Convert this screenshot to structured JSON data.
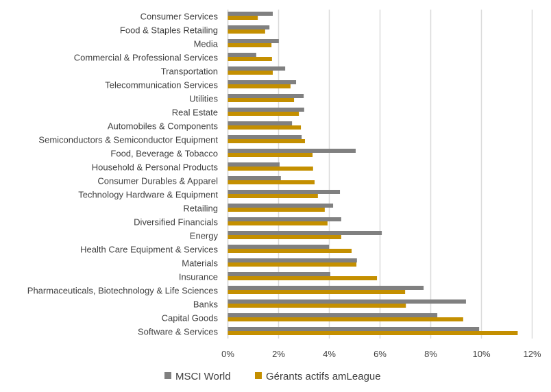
{
  "chart_data": {
    "type": "bar",
    "orientation": "horizontal",
    "title": "",
    "xlabel": "",
    "ylabel": "",
    "xlim": [
      0,
      12
    ],
    "x_ticks": [
      "0%",
      "2%",
      "4%",
      "6%",
      "8%",
      "10%",
      "12%"
    ],
    "x_tick_values": [
      0,
      2,
      4,
      6,
      8,
      10,
      12
    ],
    "grid": "vertical",
    "legend_position": "bottom",
    "unit": "%",
    "categories": [
      "Consumer Services",
      "Food & Staples Retailing",
      "Media",
      "Commercial & Professional Services",
      "Transportation",
      "Telecommunication Services",
      "Utilities",
      "Real Estate",
      "Automobiles & Components",
      "Semiconductors & Semiconductor Equipment",
      "Food, Beverage & Tobacco",
      "Household & Personal Products",
      "Consumer Durables & Apparel",
      "Technology Hardware & Equipment",
      "Retailing",
      "Diversified Financials",
      "Energy",
      "Health Care Equipment & Services",
      "Materials",
      "Insurance",
      "Pharmaceuticals, Biotechnology & Life Sciences",
      "Banks",
      "Capital Goods",
      "Software & Services"
    ],
    "series": [
      {
        "name": "MSCI World",
        "color": "#808080",
        "values": [
          1.77,
          1.64,
          2.01,
          1.12,
          2.26,
          2.69,
          2.99,
          3.01,
          2.53,
          2.91,
          5.04,
          2.04,
          2.09,
          4.42,
          4.15,
          4.47,
          6.07,
          3.99,
          5.09,
          4.04,
          7.72,
          9.39,
          8.26,
          9.91
        ]
      },
      {
        "name": "Gérants actifs amLeague",
        "color": "#C48F00",
        "values": [
          1.18,
          1.47,
          1.72,
          1.74,
          1.77,
          2.47,
          2.61,
          2.8,
          2.88,
          3.04,
          3.34,
          3.36,
          3.42,
          3.55,
          3.82,
          3.93,
          4.47,
          4.88,
          5.07,
          5.88,
          6.99,
          7.02,
          9.28,
          11.43
        ]
      }
    ]
  }
}
